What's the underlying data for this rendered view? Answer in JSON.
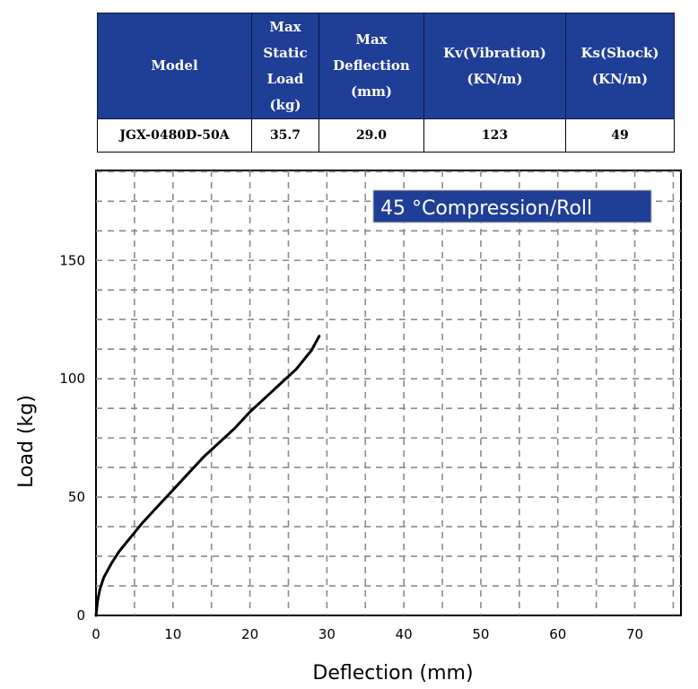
{
  "table": {
    "headers": [
      [
        "Model"
      ],
      [
        "Max",
        "Static",
        "Load",
        "(kg)"
      ],
      [
        "Max",
        "Deflection",
        "(mm)"
      ],
      [
        "Kv(Vibration)",
        "(KN/m)"
      ],
      [
        "Ks(Shock)",
        "(KN/m)"
      ]
    ],
    "row": [
      "JGX-0480D-50A",
      "35.7",
      "29.0",
      "123",
      "49"
    ],
    "header_color": "#1f3e96"
  },
  "chart_data": {
    "type": "line",
    "legend_label": "45 °Compression/Roll",
    "legend_color": "#1f3e96",
    "xlabel": "Deflection (mm)",
    "ylabel": "Load (kg)",
    "xlim": [
      0,
      76
    ],
    "ylim": [
      0,
      188
    ],
    "x_ticks": [
      0,
      10,
      20,
      30,
      40,
      50,
      60,
      70
    ],
    "y_ticks": [
      0,
      50,
      100,
      150
    ],
    "grid": "dashed",
    "series": [
      {
        "x": [
          0,
          0.2,
          0.5,
          1,
          2,
          3,
          4,
          5,
          6,
          8,
          10,
          12,
          14,
          16,
          18,
          20,
          22,
          24,
          26,
          28,
          29
        ],
        "y": [
          0,
          6,
          11,
          16,
          22,
          27,
          31,
          35,
          39,
          46,
          53,
          60,
          67,
          73,
          79,
          86,
          92,
          98,
          104,
          112,
          118
        ]
      }
    ]
  }
}
